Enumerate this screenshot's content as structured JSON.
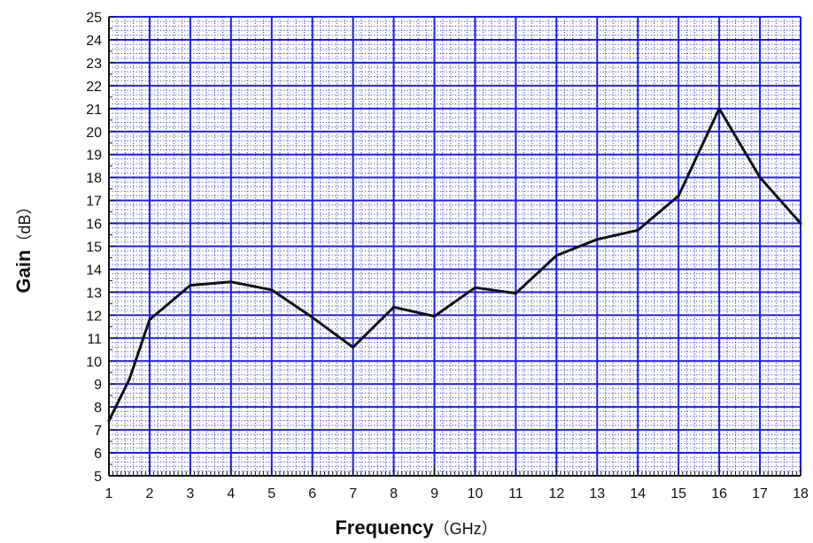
{
  "chart_data": {
    "type": "line",
    "title": "",
    "xlabel": "Frequency",
    "xlabel_unit": "（GHz）",
    "ylabel": "Gain",
    "ylabel_unit": "（dB）",
    "xlim": [
      1,
      18
    ],
    "ylim": [
      5,
      25
    ],
    "x_ticks": [
      "1",
      "2",
      "3",
      "4",
      "5",
      "6",
      "7",
      "8",
      "9",
      "10",
      "11",
      "12",
      "13",
      "14",
      "15",
      "16",
      "17",
      "18"
    ],
    "y_ticks": [
      "5",
      "6",
      "7",
      "8",
      "9",
      "10",
      "11",
      "12",
      "13",
      "14",
      "15",
      "16",
      "17",
      "18",
      "19",
      "20",
      "21",
      "22",
      "23",
      "24",
      "25"
    ],
    "grid": true,
    "series": [
      {
        "x": [
          1,
          1.5,
          2,
          3,
          4,
          5,
          6,
          7,
          8,
          9,
          10,
          11,
          12,
          13,
          14,
          15,
          16,
          17,
          18
        ],
        "y": [
          7.4,
          9.2,
          11.8,
          13.3,
          13.45,
          13.1,
          11.9,
          10.6,
          12.35,
          11.95,
          13.2,
          12.95,
          14.6,
          15.3,
          15.7,
          17.2,
          21.0,
          18.0,
          16.0
        ]
      }
    ],
    "colors": {
      "major_grid": "#1c1cf0",
      "minor_grid": "#3f3fd8",
      "line": "#111111",
      "axis": "#111111"
    }
  }
}
